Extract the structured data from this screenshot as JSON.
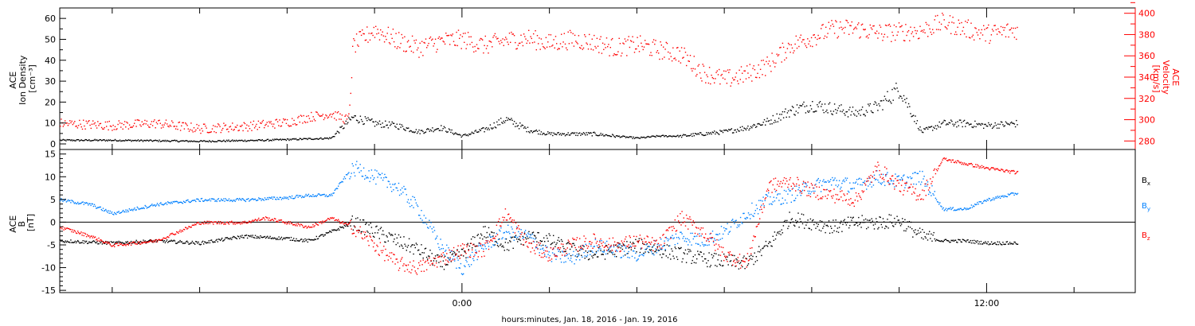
{
  "chart_data": [
    {
      "type": "scatter",
      "panel": "top",
      "ylabel_left": [
        "ACE",
        "Ion Density",
        "[cm⁻³]"
      ],
      "ylabel_right": [
        "ACE",
        "Velocity",
        "[km/s]"
      ],
      "ylim_left": [
        0,
        65
      ],
      "ylim_right": [
        272,
        405
      ],
      "yticks_left": [
        "0",
        "10",
        "20",
        "30",
        "40",
        "50",
        "60"
      ],
      "yticks_right": [
        "280",
        "300",
        "320",
        "340",
        "360",
        "380",
        "400"
      ],
      "right_axis_color": "#ff0000",
      "x_range_hours": [
        -9.2,
        15.4
      ],
      "series": [
        {
          "color": "#000000",
          "axis": "left",
          "x": [
            -9.2,
            -8,
            -6,
            -4.5,
            -3,
            -2.5,
            -2,
            -1.5,
            -1,
            -0.5,
            0,
            0.5,
            1,
            1.5,
            2,
            3,
            4,
            4.5,
            5,
            5.5,
            6,
            6.5,
            7,
            7.5,
            8,
            8.5,
            9,
            9.5,
            10,
            10.5,
            11,
            11.5,
            12,
            12.7
          ],
          "values": [
            2,
            2,
            1.5,
            2,
            3,
            13,
            10,
            9,
            6,
            8,
            4,
            7,
            12,
            7,
            5,
            5,
            3,
            4,
            4,
            5,
            6,
            8,
            11,
            16,
            19,
            17,
            15,
            18,
            27,
            6,
            10,
            10,
            9,
            10
          ]
        },
        {
          "color": "#ff0000",
          "axis": "right",
          "x": [
            -9.2,
            -8,
            -7,
            -6,
            -5,
            -4,
            -3.5,
            -3,
            -2.6,
            -2.5,
            -2,
            -1.5,
            -1,
            -0.5,
            0,
            0.5,
            1,
            1.5,
            2,
            2.5,
            3,
            3.5,
            4,
            4.5,
            5,
            5.5,
            6,
            6.5,
            7,
            7.5,
            8,
            8.5,
            9,
            9.5,
            10,
            10.5,
            11,
            11.5,
            12,
            12.7
          ],
          "values": [
            297,
            295,
            297,
            292,
            294,
            298,
            303,
            306,
            300,
            370,
            385,
            375,
            368,
            374,
            376,
            370,
            375,
            377,
            372,
            376,
            373,
            368,
            371,
            366,
            362,
            345,
            338,
            343,
            352,
            370,
            378,
            386,
            386,
            382,
            383,
            384,
            392,
            386,
            381,
            385
          ]
        }
      ]
    },
    {
      "type": "scatter",
      "panel": "bottom",
      "ylabel": [
        "ACE",
        "B",
        "[nT]"
      ],
      "ylim": [
        -15.5,
        16
      ],
      "yticks": [
        "-15",
        "-10",
        "-5",
        "0",
        "5",
        "10",
        "15"
      ],
      "zero_line": true,
      "xticks": [
        "0:00",
        "12:00"
      ],
      "x_range_hours": [
        -9.2,
        15.4
      ],
      "series": [
        {
          "name": "Bx",
          "legend_base": "B",
          "legend_sub": "x",
          "color": "#000000",
          "x": [
            -9.2,
            -8,
            -7,
            -6,
            -5,
            -4,
            -3.5,
            -3,
            -2.5,
            -2,
            -1.5,
            -1,
            -0.5,
            0,
            0.5,
            1,
            1.5,
            2,
            2.5,
            3,
            3.5,
            4,
            4.5,
            5,
            5.5,
            6,
            6.5,
            7,
            7.5,
            8,
            8.5,
            9,
            9.5,
            10,
            10.5,
            11,
            11.5,
            12,
            12.7
          ],
          "values": [
            -4,
            -4.5,
            -4,
            -4.5,
            -3,
            -3.5,
            -4,
            -2,
            0,
            -2,
            -4,
            -6,
            -9,
            -7,
            -2,
            -5,
            -3,
            -4,
            -6,
            -7,
            -6,
            -5,
            -6,
            -7,
            -8,
            -8.5,
            -9,
            -5,
            1,
            0,
            -1,
            0,
            0,
            0.5,
            -3,
            -4,
            -4,
            -4.5,
            -4.5
          ]
        },
        {
          "name": "By",
          "legend_base": "B",
          "legend_sub": "y",
          "color": "#0080ff",
          "x": [
            -9.2,
            -8.5,
            -8,
            -7,
            -6.5,
            -6,
            -5,
            -4,
            -3.5,
            -3,
            -2.6,
            -2.4,
            -2,
            -1.5,
            -1,
            -0.5,
            0,
            0.5,
            1,
            1.5,
            2,
            2.5,
            3,
            3.5,
            4,
            4.5,
            5,
            5.5,
            6,
            6.5,
            7,
            7.5,
            8,
            8.5,
            9,
            9.5,
            10,
            10.5,
            11,
            11.5,
            12,
            12.7
          ],
          "values": [
            5,
            4,
            2,
            4,
            4.5,
            5,
            5,
            5.5,
            6,
            6,
            11,
            12,
            10,
            8,
            3,
            -5,
            -10,
            -5,
            -2,
            -3,
            -7,
            -8,
            -5,
            -6,
            -7,
            -5,
            -3,
            -4,
            -2,
            2,
            5,
            6,
            8,
            9,
            8,
            10,
            9,
            10,
            3,
            3,
            5,
            6.5
          ]
        },
        {
          "name": "Bz",
          "legend_base": "B",
          "legend_sub": "z",
          "color": "#ff0000",
          "x": [
            -9.2,
            -8.5,
            -8,
            -7,
            -6,
            -5,
            -4.5,
            -4,
            -3.5,
            -3,
            -2.5,
            -2,
            -1.5,
            -1,
            -0.5,
            0,
            0.5,
            1,
            1.5,
            2,
            2.5,
            3,
            3.5,
            4,
            4.5,
            5,
            5.5,
            6,
            6.5,
            7,
            7.5,
            8,
            8.5,
            9,
            9.5,
            10,
            10.5,
            11,
            11.5,
            12,
            12.7
          ],
          "values": [
            -1,
            -3,
            -5,
            -4,
            0,
            0,
            1,
            0,
            -1,
            1,
            -1,
            -5,
            -9,
            -10,
            -8,
            -6,
            -6,
            2,
            -5,
            -7,
            -5,
            -4,
            -5,
            -4,
            -5,
            1,
            -2,
            -7,
            -9,
            8,
            9,
            7,
            6,
            5,
            12,
            8,
            6,
            14,
            13,
            12,
            11
          ]
        }
      ]
    }
  ],
  "xlabel": "hours:minutes, Jan. 18, 2016 - Jan. 19, 2016"
}
